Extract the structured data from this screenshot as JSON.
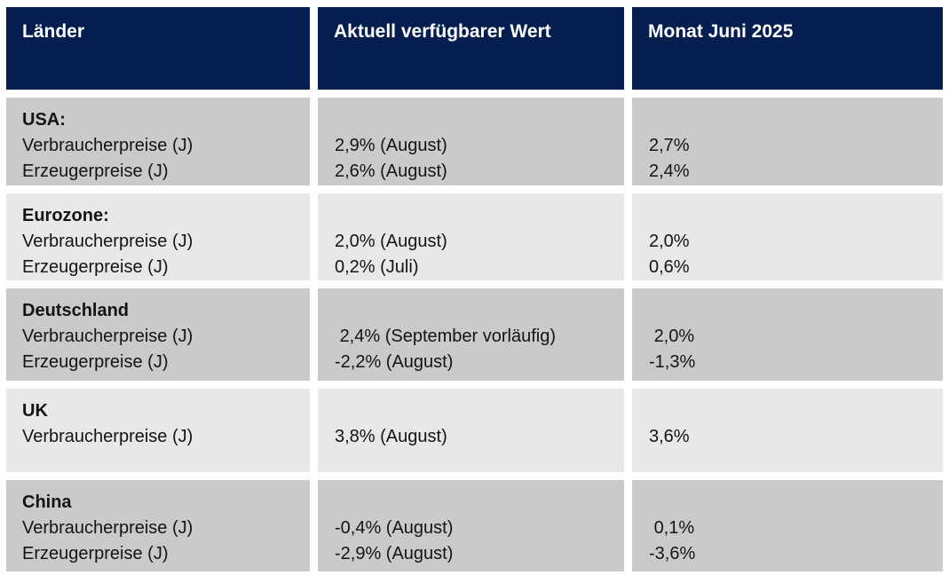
{
  "colors": {
    "header_background": "#041e50",
    "header_text": "#ffffff",
    "row_shade_dark": "#cacacd",
    "row_shade_light": "#e8e8e9",
    "body_text": "#141414",
    "page_background": "#ffffff"
  },
  "chart_data": {
    "type": "table",
    "columns": [
      "Länder",
      "Aktuell verfügbarer Wert",
      "Monat Juni 2025"
    ],
    "rows": [
      {
        "country": "USA:",
        "indicators": [
          "Verbraucherpreise (J)",
          "Erzeugerpreise (J)"
        ],
        "current_values": [
          "2,9% (August)",
          "2,6% (August)"
        ],
        "june_2025_values": [
          "2,7%",
          "2,4%"
        ]
      },
      {
        "country": "Eurozone:",
        "indicators": [
          "Verbraucherpreise (J)",
          "Erzeugerpreise (J)"
        ],
        "current_values": [
          "2,0% (August)",
          "0,2% (Juli)"
        ],
        "june_2025_values": [
          "2,0%",
          "0,6%"
        ]
      },
      {
        "country": "Deutschland",
        "indicators": [
          "Verbraucherpreise (J)",
          "Erzeugerpreise (J)"
        ],
        "current_values": [
          " 2,4% (September vorläufig)",
          "-2,2% (August)"
        ],
        "june_2025_values": [
          " 2,0%",
          "-1,3%"
        ]
      },
      {
        "country": "UK",
        "indicators": [
          "Verbraucherpreise (J)"
        ],
        "current_values": [
          "3,8% (August)"
        ],
        "june_2025_values": [
          "3,6%"
        ]
      },
      {
        "country": "China",
        "indicators": [
          "Verbraucherpreise (J)",
          "Erzeugerpreise (J)"
        ],
        "current_values": [
          "-0,4% (August)",
          "-2,9% (August)"
        ],
        "june_2025_values": [
          " 0,1%",
          "-3,6%"
        ]
      }
    ]
  }
}
